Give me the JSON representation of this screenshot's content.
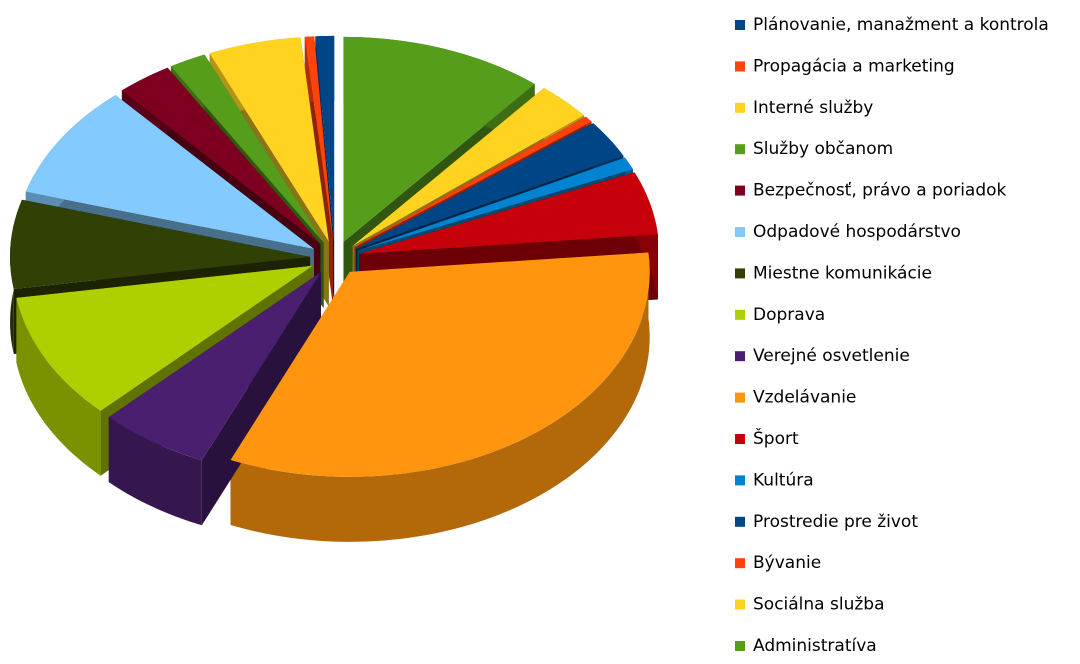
{
  "chart_data": {
    "type": "pie",
    "categories": [
      "Plánovanie, manažment a kontrola",
      "Propagácia a marketing",
      "Interné služby",
      "Služby občanom",
      "Bezpečnosť, právo a poriadok",
      "Odpadové hospodárstvo",
      "Miestne komunikácie",
      "Doprava",
      "Verejné osvetlenie",
      "Vzdelávanie",
      "Šport",
      "Kultúra",
      "Prostredie pre život",
      "Bývanie",
      "Sociálna služba",
      "Administratíva"
    ],
    "values": [
      1,
      0.5,
      5,
      2,
      3,
      9,
      7,
      10,
      6,
      33,
      5,
      1,
      3,
      0.5,
      3,
      11
    ],
    "colors": [
      "#004586",
      "#ff420e",
      "#ffd320",
      "#579d1c",
      "#7e0021",
      "#83caff",
      "#314004",
      "#aecf00",
      "#4b1f6f",
      "#ff950e",
      "#c5000b",
      "#0084d1",
      "#004586",
      "#ff420e",
      "#ffd320",
      "#579d1c"
    ],
    "legend": "right"
  }
}
